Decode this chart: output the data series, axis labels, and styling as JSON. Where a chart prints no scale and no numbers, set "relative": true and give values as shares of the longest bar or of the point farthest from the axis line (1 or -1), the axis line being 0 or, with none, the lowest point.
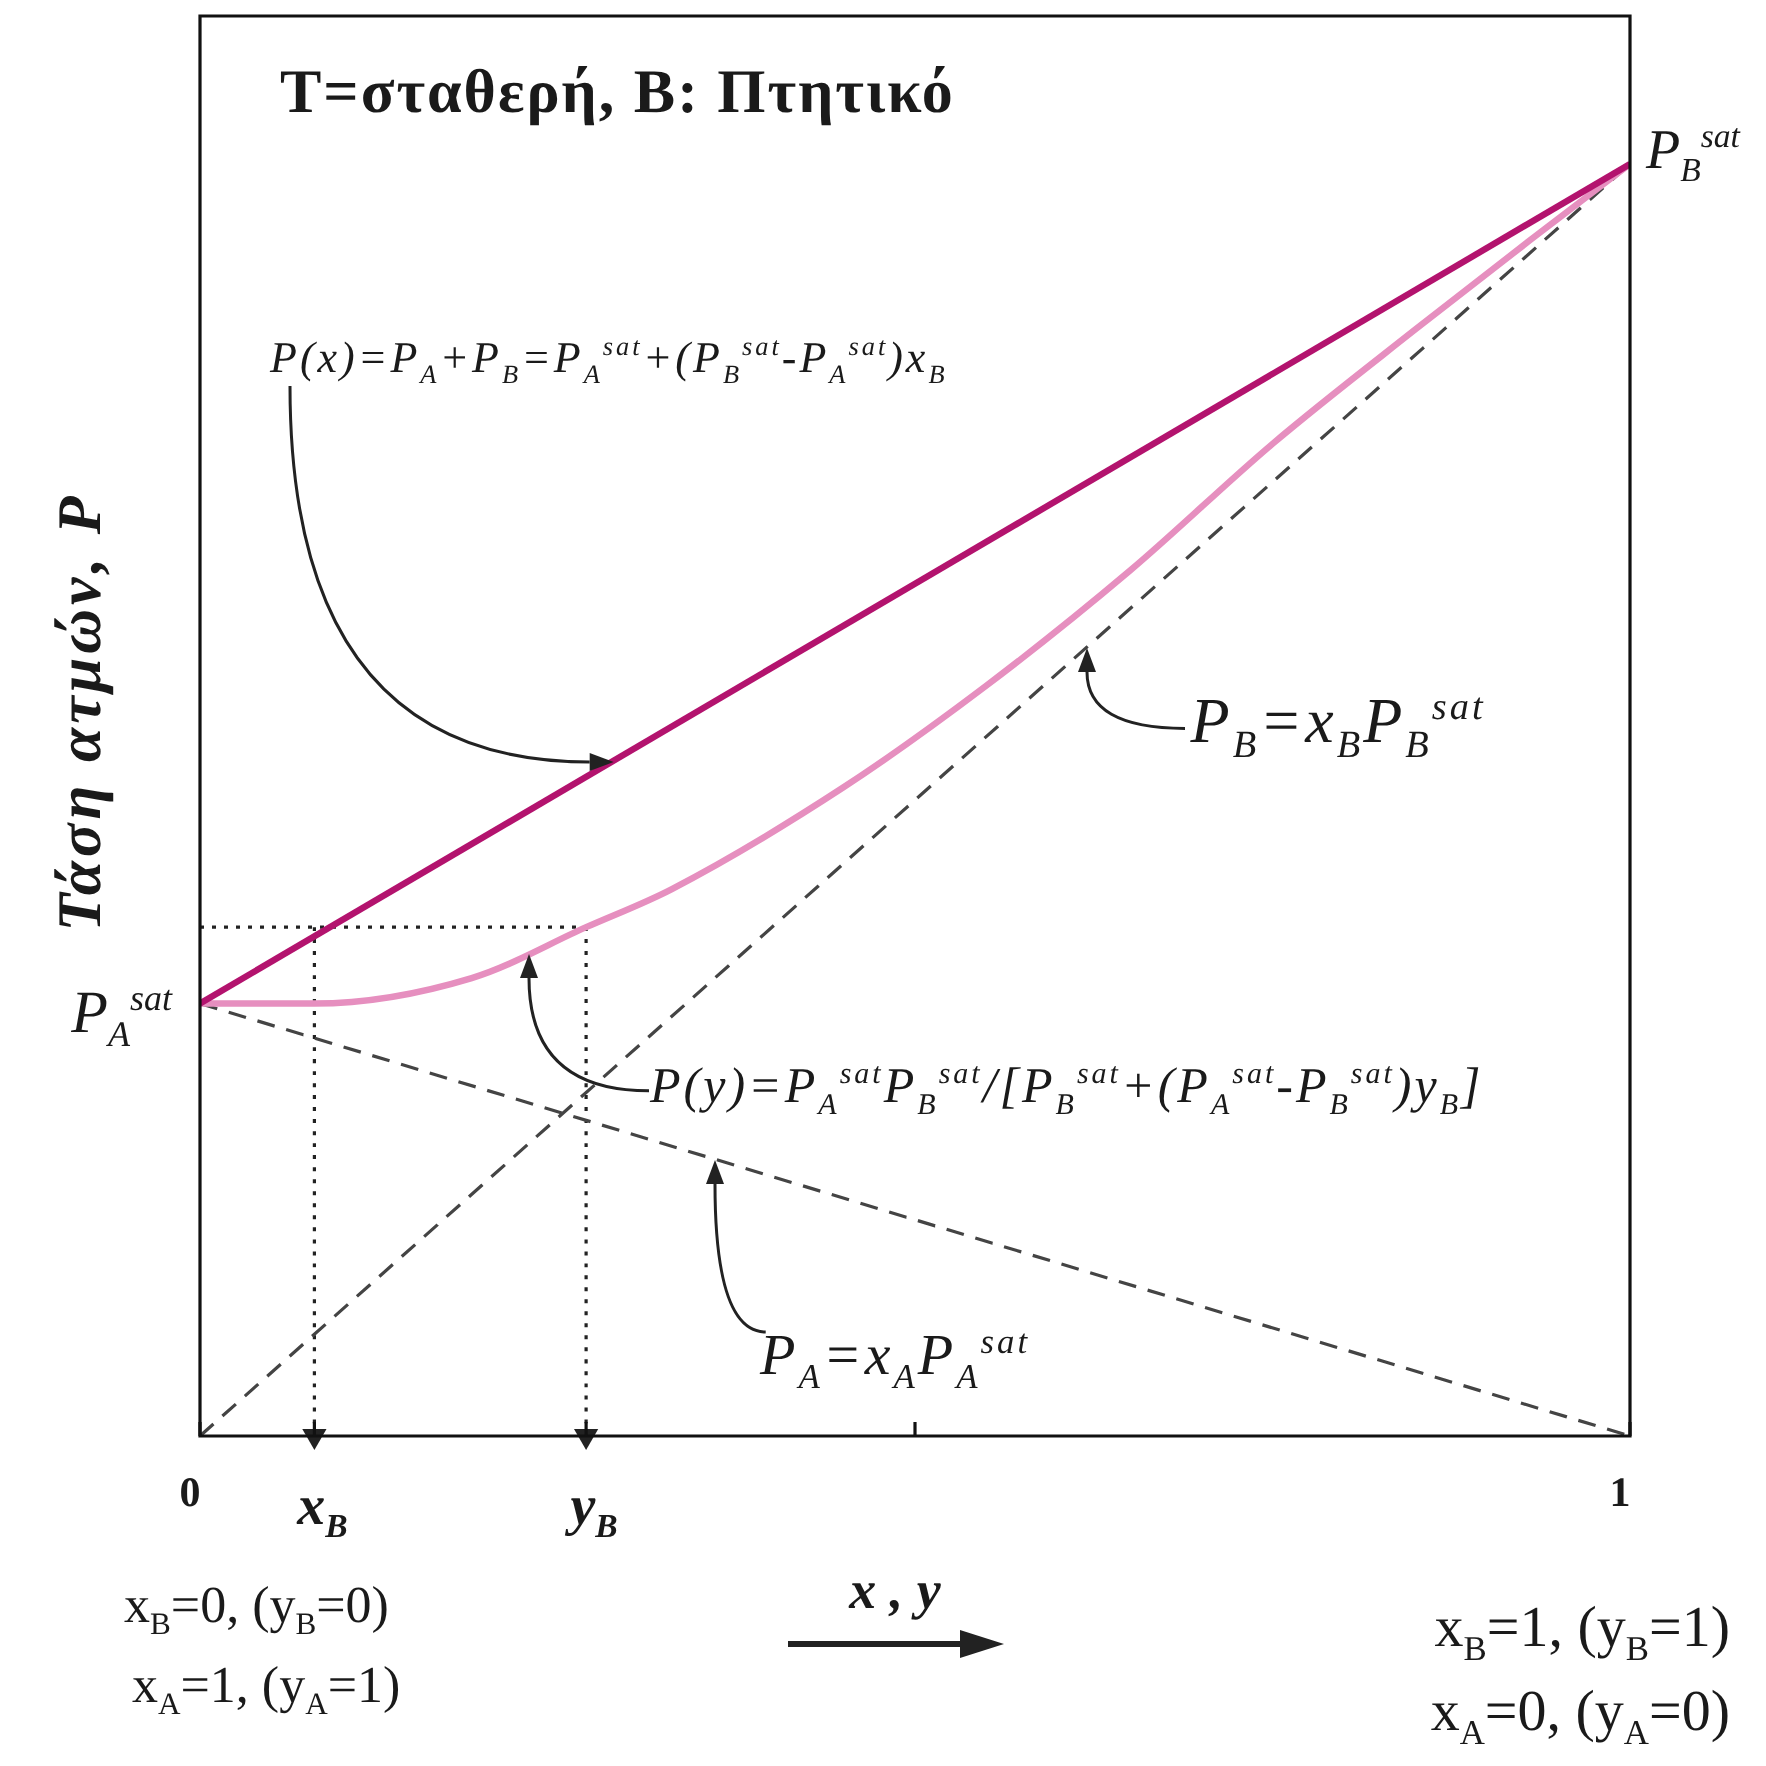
{
  "chart_data": {
    "type": "line",
    "title": "T=σταθερή, B: Πτητικό",
    "xlabel": "x , y",
    "ylabel": "Τάση ατμών, P",
    "relative": true,
    "xlim": [
      0,
      1
    ],
    "xticks": [
      0,
      {
        "value": 0.08,
        "label": "x$_{B}$"
      },
      {
        "value": 0.27,
        "label": "y$_{B}$"
      },
      {
        "value": 0.5,
        "label": null
      },
      1
    ],
    "series": [
      {
        "color": "#b3136e",
        "x": [
          0,
          1
        ],
        "values": [
          0.34,
          1
        ]
      },
      {
        "color": "#e68fbf",
        "x": [
          0,
          0.08,
          0.19,
          0.27,
          0.33,
          0.45,
          0.55,
          0.65,
          0.75,
          0.85,
          0.93,
          1
        ],
        "values": [
          0.34,
          0.34,
          0.36,
          0.4,
          0.43,
          0.51,
          0.59,
          0.68,
          0.78,
          0.87,
          0.94,
          1
        ]
      },
      {
        "color": "#444444",
        "line_style": "dashed",
        "x": [
          0,
          1
        ],
        "values": [
          0,
          1
        ]
      },
      {
        "color": "#444444",
        "line_style": "dashed",
        "x": [
          0,
          1
        ],
        "values": [
          0.34,
          0
        ]
      },
      {
        "color": "#222222",
        "line_style": "dotted",
        "x": [
          0,
          0.27
        ],
        "values": [
          0.4,
          0.4
        ]
      },
      {
        "color": "#222222",
        "line_style": "dotted",
        "marker": "triangle",
        "x": [
          0.08,
          0.08
        ],
        "values": [
          0.4,
          0
        ]
      },
      {
        "color": "#222222",
        "line_style": "dotted",
        "marker": "triangle",
        "x": [
          0.27,
          0.27
        ],
        "values": [
          0.4,
          0
        ]
      }
    ],
    "annotations": [
      "P(x)=P$_{A}$+P$_{B}$=P$_{A}$$^{sat}$+(P$_{B}$$^{sat}$-P$_{A}$$^{sat}$)x$_{B}$",
      {
        "text": "P$_{B}$=x$_{B}$P$_{B}$$^{sat}$",
        "x": 0.62,
        "y": 0.62
      },
      "P(y)=P$_{A}$$^{sat}$P$_{B}$$^{sat}$/[P$_{B}$$^{sat}$+(P$_{A}$$^{sat}$-P$_{B}$$^{sat}$)y$_{B}$]",
      "P$_{A}$=x$_{A}$P$_{A}$$^{sat}$",
      {
        "text": "P$_{A}$$^{sat}$",
        "x": 0,
        "y": 0.34
      },
      {
        "text": "P$_{B}$$^{sat}$",
        "x": 1,
        "y": 1
      },
      "x$_{B}$=0, (y$_{B}$=0)",
      "x$_{A}$=1, (y$_{A}$=1)",
      "x$_{B}$=1, (y$_{B}$=1)",
      "x$_{A}$=0, (y$_{A}$=0)"
    ]
  }
}
